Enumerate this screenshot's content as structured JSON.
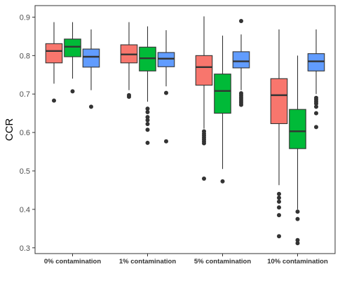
{
  "chart_data": {
    "type": "boxplot",
    "title": "",
    "xlabel": "",
    "ylabel": "CCR",
    "ylim": [
      0.285,
      0.93
    ],
    "yticks": [
      0.3,
      0.4,
      0.5,
      0.6,
      0.7,
      0.8,
      0.9
    ],
    "categories": [
      "0% contamination",
      "1% contamination",
      "5% contamination",
      "10% contamination"
    ],
    "legend": "none",
    "grid": false,
    "series": [
      {
        "color": "#F8766D",
        "boxes": [
          {
            "min": 0.727,
            "q1": 0.781,
            "median": 0.812,
            "q3": 0.831,
            "max": 0.887,
            "outliers": [
              0.683
            ]
          },
          {
            "min": 0.71,
            "q1": 0.781,
            "median": 0.803,
            "q3": 0.828,
            "max": 0.887,
            "outliers": [
              0.697,
              0.693
            ]
          },
          {
            "min": 0.61,
            "q1": 0.723,
            "median": 0.77,
            "q3": 0.8,
            "max": 0.902,
            "outliers": [
              0.603,
              0.597,
              0.592,
              0.587,
              0.582,
              0.577,
              0.572,
              0.48
            ]
          },
          {
            "min": 0.463,
            "q1": 0.623,
            "median": 0.697,
            "q3": 0.74,
            "max": 0.868,
            "outliers": [
              0.44,
              0.43,
              0.42,
              0.405,
              0.385,
              0.33
            ]
          }
        ]
      },
      {
        "color": "#00BA38",
        "boxes": [
          {
            "min": 0.74,
            "q1": 0.797,
            "median": 0.823,
            "q3": 0.843,
            "max": 0.887,
            "outliers": [
              0.707
            ]
          },
          {
            "min": 0.68,
            "q1": 0.76,
            "median": 0.793,
            "q3": 0.822,
            "max": 0.876,
            "outliers": [
              0.662,
              0.653,
              0.64,
              0.632,
              0.622,
              0.607,
              0.573
            ]
          },
          {
            "min": 0.505,
            "q1": 0.65,
            "median": 0.708,
            "q3": 0.752,
            "max": 0.852,
            "outliers": [
              0.473
            ]
          },
          {
            "min": 0.4,
            "q1": 0.558,
            "median": 0.603,
            "q3": 0.66,
            "max": 0.8,
            "outliers": [
              0.394,
              0.375,
              0.32,
              0.312
            ]
          }
        ]
      },
      {
        "color": "#619CFF",
        "boxes": [
          {
            "min": 0.71,
            "q1": 0.77,
            "median": 0.797,
            "q3": 0.817,
            "max": 0.868,
            "outliers": [
              0.667
            ]
          },
          {
            "min": 0.72,
            "q1": 0.771,
            "median": 0.792,
            "q3": 0.808,
            "max": 0.866,
            "outliers": [
              0.703,
              0.577
            ]
          },
          {
            "min": 0.71,
            "q1": 0.768,
            "median": 0.785,
            "q3": 0.81,
            "max": 0.855,
            "outliers": [
              0.89,
              0.702,
              0.697,
              0.692,
              0.687,
              0.682,
              0.677,
              0.672
            ]
          },
          {
            "min": 0.7,
            "q1": 0.76,
            "median": 0.785,
            "q3": 0.805,
            "max": 0.868,
            "outliers": [
              0.69,
              0.685,
              0.68,
              0.675,
              0.667,
              0.65,
              0.614
            ]
          }
        ]
      }
    ]
  }
}
